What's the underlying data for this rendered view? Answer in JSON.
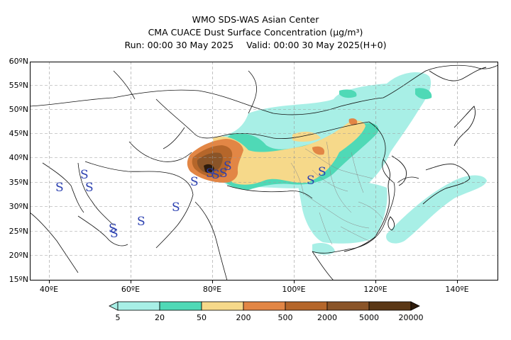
{
  "header": {
    "line1": "WMO SDS-WAS Asian Center",
    "line2": "CMA CUACE Dust Surface Concentration (μg/m³)",
    "run_label": "Run: 00:00 30 May 2025",
    "valid_label": "Valid: 00:00 30 May 2025(H+0)"
  },
  "map": {
    "lat_labels": [
      "60ºN",
      "55ºN",
      "50ºN",
      "45ºN",
      "40ºN",
      "35ºN",
      "30ºN",
      "25ºN",
      "20ºN",
      "15ºN"
    ],
    "lon_labels": [
      "40ºE",
      "60ºE",
      "80ºE",
      "100ºE",
      "120ºE",
      "140ºE"
    ],
    "symbol_glyph": "S",
    "symbol_color": "#2a3fb0"
  },
  "colorbar": {
    "labels": [
      "5",
      "20",
      "50",
      "200",
      "500",
      "2000",
      "5000",
      "20000"
    ],
    "colors": [
      "#a8efe6",
      "#4fd9b6",
      "#f6d98a",
      "#e28645",
      "#b5662a",
      "#8a5428",
      "#5a3715",
      "#2e1c0c"
    ]
  }
}
